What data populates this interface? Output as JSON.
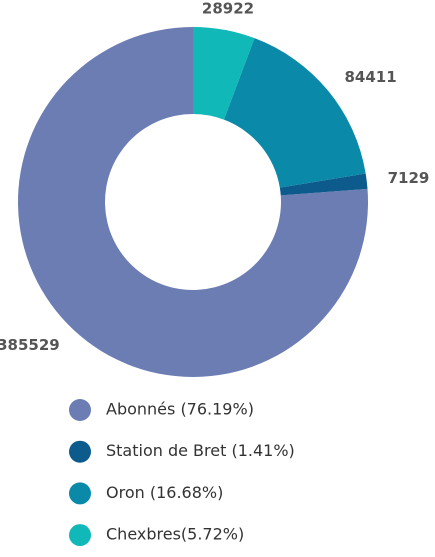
{
  "chart_data": {
    "type": "donut",
    "categories": [
      "Abonnés (76.19%)",
      "Station de Bret (1.41%)",
      "Oron (16.68%)",
      "Chexbres(5.72%)"
    ],
    "values": [
      385529,
      7129,
      84411,
      28922
    ],
    "colors": [
      "#6b7db3",
      "#0d5a8c",
      "#0a89a8",
      "#10b8b8"
    ]
  }
}
